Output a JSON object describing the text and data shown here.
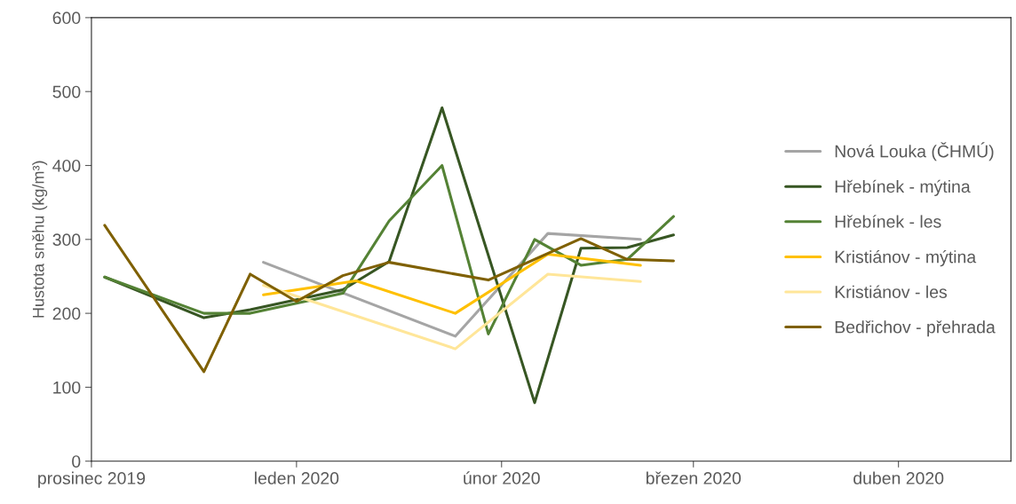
{
  "chart_data": {
    "type": "line",
    "ylabel": "Hustota sněhu (kg/m³)",
    "xlim": [
      "2019-12-01",
      "2020-04-18"
    ],
    "xticks": [
      {
        "value": "2019-12-01",
        "label": "prosinec 2019"
      },
      {
        "value": "2020-01-01",
        "label": "leden 2020"
      },
      {
        "value": "2020-02-01",
        "label": "únor 2020"
      },
      {
        "value": "2020-03-01",
        "label": "březen 2020"
      },
      {
        "value": "2020-04-01",
        "label": "duben 2020"
      }
    ],
    "ylim": [
      0,
      600
    ],
    "yticks": [
      0,
      100,
      200,
      300,
      400,
      500,
      600
    ],
    "grid": false,
    "legend": "right",
    "marker": "none",
    "line_style": "solid",
    "series": [
      {
        "name": "Nová Louka (ČHMÚ)",
        "color": "#a5a5a5",
        "x": [
          "2019-12-27",
          "2020-01-25",
          "2020-02-08",
          "2020-02-22"
        ],
        "values": [
          269,
          169,
          308,
          300
        ]
      },
      {
        "name": "Hřebínek - mýtina",
        "color": "#375623",
        "x": [
          "2019-12-03",
          "2019-12-18",
          "2019-12-25",
          "2020-01-08",
          "2020-01-15",
          "2020-01-23",
          "2020-02-06",
          "2020-02-13",
          "2020-02-20",
          "2020-02-27"
        ],
        "values": [
          249,
          194,
          205,
          232,
          270,
          478,
          79,
          288,
          289,
          306
        ]
      },
      {
        "name": "Hřebínek - les",
        "color": "#548235",
        "x": [
          "2019-12-03",
          "2019-12-18",
          "2019-12-25",
          "2020-01-08",
          "2020-01-15",
          "2020-01-23",
          "2020-01-30",
          "2020-02-06",
          "2020-02-13",
          "2020-02-20",
          "2020-02-27"
        ],
        "values": [
          249,
          200,
          200,
          227,
          325,
          400,
          172,
          300,
          265,
          273,
          331
        ]
      },
      {
        "name": "Kristiánov - mýtina",
        "color": "#ffc000",
        "x": [
          "2019-12-27",
          "2020-01-10",
          "2020-01-25",
          "2020-02-08",
          "2020-02-22"
        ],
        "values": [
          225,
          244,
          200,
          280,
          265
        ]
      },
      {
        "name": "Kristiánov - les",
        "color": "#ffe699",
        "x": [
          "2019-12-27",
          "2020-01-25",
          "2020-02-08",
          "2020-02-22"
        ],
        "values": [
          238,
          152,
          253,
          243
        ]
      },
      {
        "name": "Bedřichov - přehrada",
        "color": "#7f6000",
        "x": [
          "2019-12-03",
          "2019-12-18",
          "2019-12-25",
          "2020-01-01",
          "2020-01-08",
          "2020-01-15",
          "2020-01-30",
          "2020-02-13",
          "2020-02-20",
          "2020-02-27"
        ],
        "values": [
          319,
          121,
          253,
          216,
          251,
          269,
          245,
          301,
          273,
          271
        ]
      }
    ]
  }
}
